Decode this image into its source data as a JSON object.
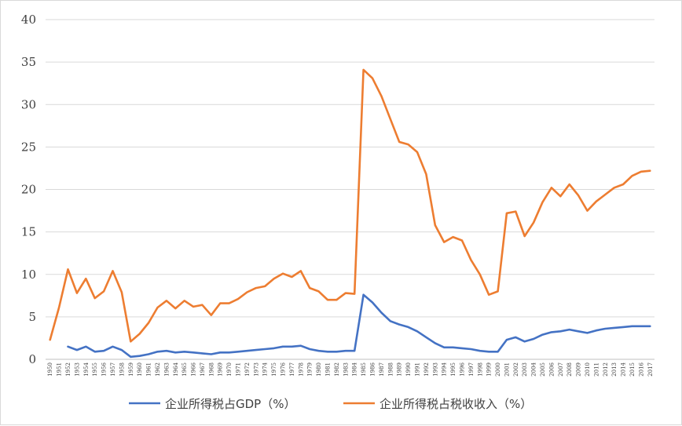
{
  "chart_data": {
    "type": "line",
    "title": "",
    "xlabel": "",
    "ylabel": "",
    "ylim": [
      0,
      40
    ],
    "yticks": [
      0,
      5,
      10,
      15,
      20,
      25,
      30,
      35,
      40
    ],
    "grid": "horizontal",
    "legend": "bottom",
    "categories": [
      "1950",
      "1951",
      "1952",
      "1953",
      "1954",
      "1955",
      "1956",
      "1957",
      "1958",
      "1959",
      "1960",
      "1961",
      "1962",
      "1963",
      "1964",
      "1965",
      "1966",
      "1967",
      "1968",
      "1969",
      "1970",
      "1971",
      "1972",
      "1973",
      "1974",
      "1975",
      "1976",
      "1977",
      "1978",
      "1979",
      "1980",
      "1981",
      "1982",
      "1983",
      "1984",
      "1985",
      "1986",
      "1987",
      "1988",
      "1989",
      "1990",
      "1991",
      "1992",
      "1993",
      "1994",
      "1995",
      "1996",
      "1997",
      "1998",
      "1999",
      "2000",
      "2001",
      "2002",
      "2003",
      "2004",
      "2005",
      "2006",
      "2007",
      "2008",
      "2009",
      "2010",
      "2011",
      "2012",
      "2013",
      "2014",
      "2015",
      "2016",
      "2017"
    ],
    "series": [
      {
        "name": "企业所得税占GDP（%）",
        "color": "#4472c4",
        "values": [
          null,
          null,
          1.5,
          1.1,
          1.5,
          0.9,
          1.0,
          1.5,
          1.1,
          0.3,
          0.4,
          0.6,
          0.9,
          1.0,
          0.8,
          0.9,
          0.8,
          0.7,
          0.6,
          0.8,
          0.8,
          0.9,
          1.0,
          1.1,
          1.2,
          1.3,
          1.5,
          1.5,
          1.6,
          1.2,
          1.0,
          0.9,
          0.9,
          1.0,
          1.0,
          7.6,
          6.7,
          5.5,
          4.5,
          4.1,
          3.8,
          3.3,
          2.6,
          1.9,
          1.4,
          1.4,
          1.3,
          1.2,
          1.0,
          0.9,
          0.9,
          2.3,
          2.6,
          2.1,
          2.4,
          2.9,
          3.2,
          3.3,
          3.5,
          3.3,
          3.1,
          3.4,
          3.6,
          3.7,
          3.8,
          3.9,
          3.9,
          3.9
        ]
      },
      {
        "name": "企业所得税占税收收入（%）",
        "color": "#ed7d31",
        "values": [
          2.3,
          6.1,
          10.6,
          7.8,
          9.5,
          7.2,
          8.0,
          10.4,
          7.9,
          2.1,
          3.0,
          4.3,
          6.1,
          6.9,
          6.0,
          6.9,
          6.2,
          6.4,
          5.2,
          6.6,
          6.6,
          7.1,
          7.9,
          8.4,
          8.6,
          9.5,
          10.1,
          9.7,
          10.4,
          8.4,
          8.0,
          7.0,
          7.0,
          7.8,
          7.7,
          34.1,
          33.1,
          31.0,
          28.3,
          25.6,
          25.3,
          24.4,
          21.8,
          15.8,
          13.8,
          14.4,
          14.0,
          11.7,
          10.0,
          7.6,
          8.0,
          17.2,
          17.4,
          14.5,
          16.1,
          18.5,
          20.2,
          19.2,
          20.6,
          19.3,
          17.5,
          18.6,
          19.4,
          20.2,
          20.6,
          21.6,
          22.1,
          22.2
        ]
      }
    ]
  }
}
